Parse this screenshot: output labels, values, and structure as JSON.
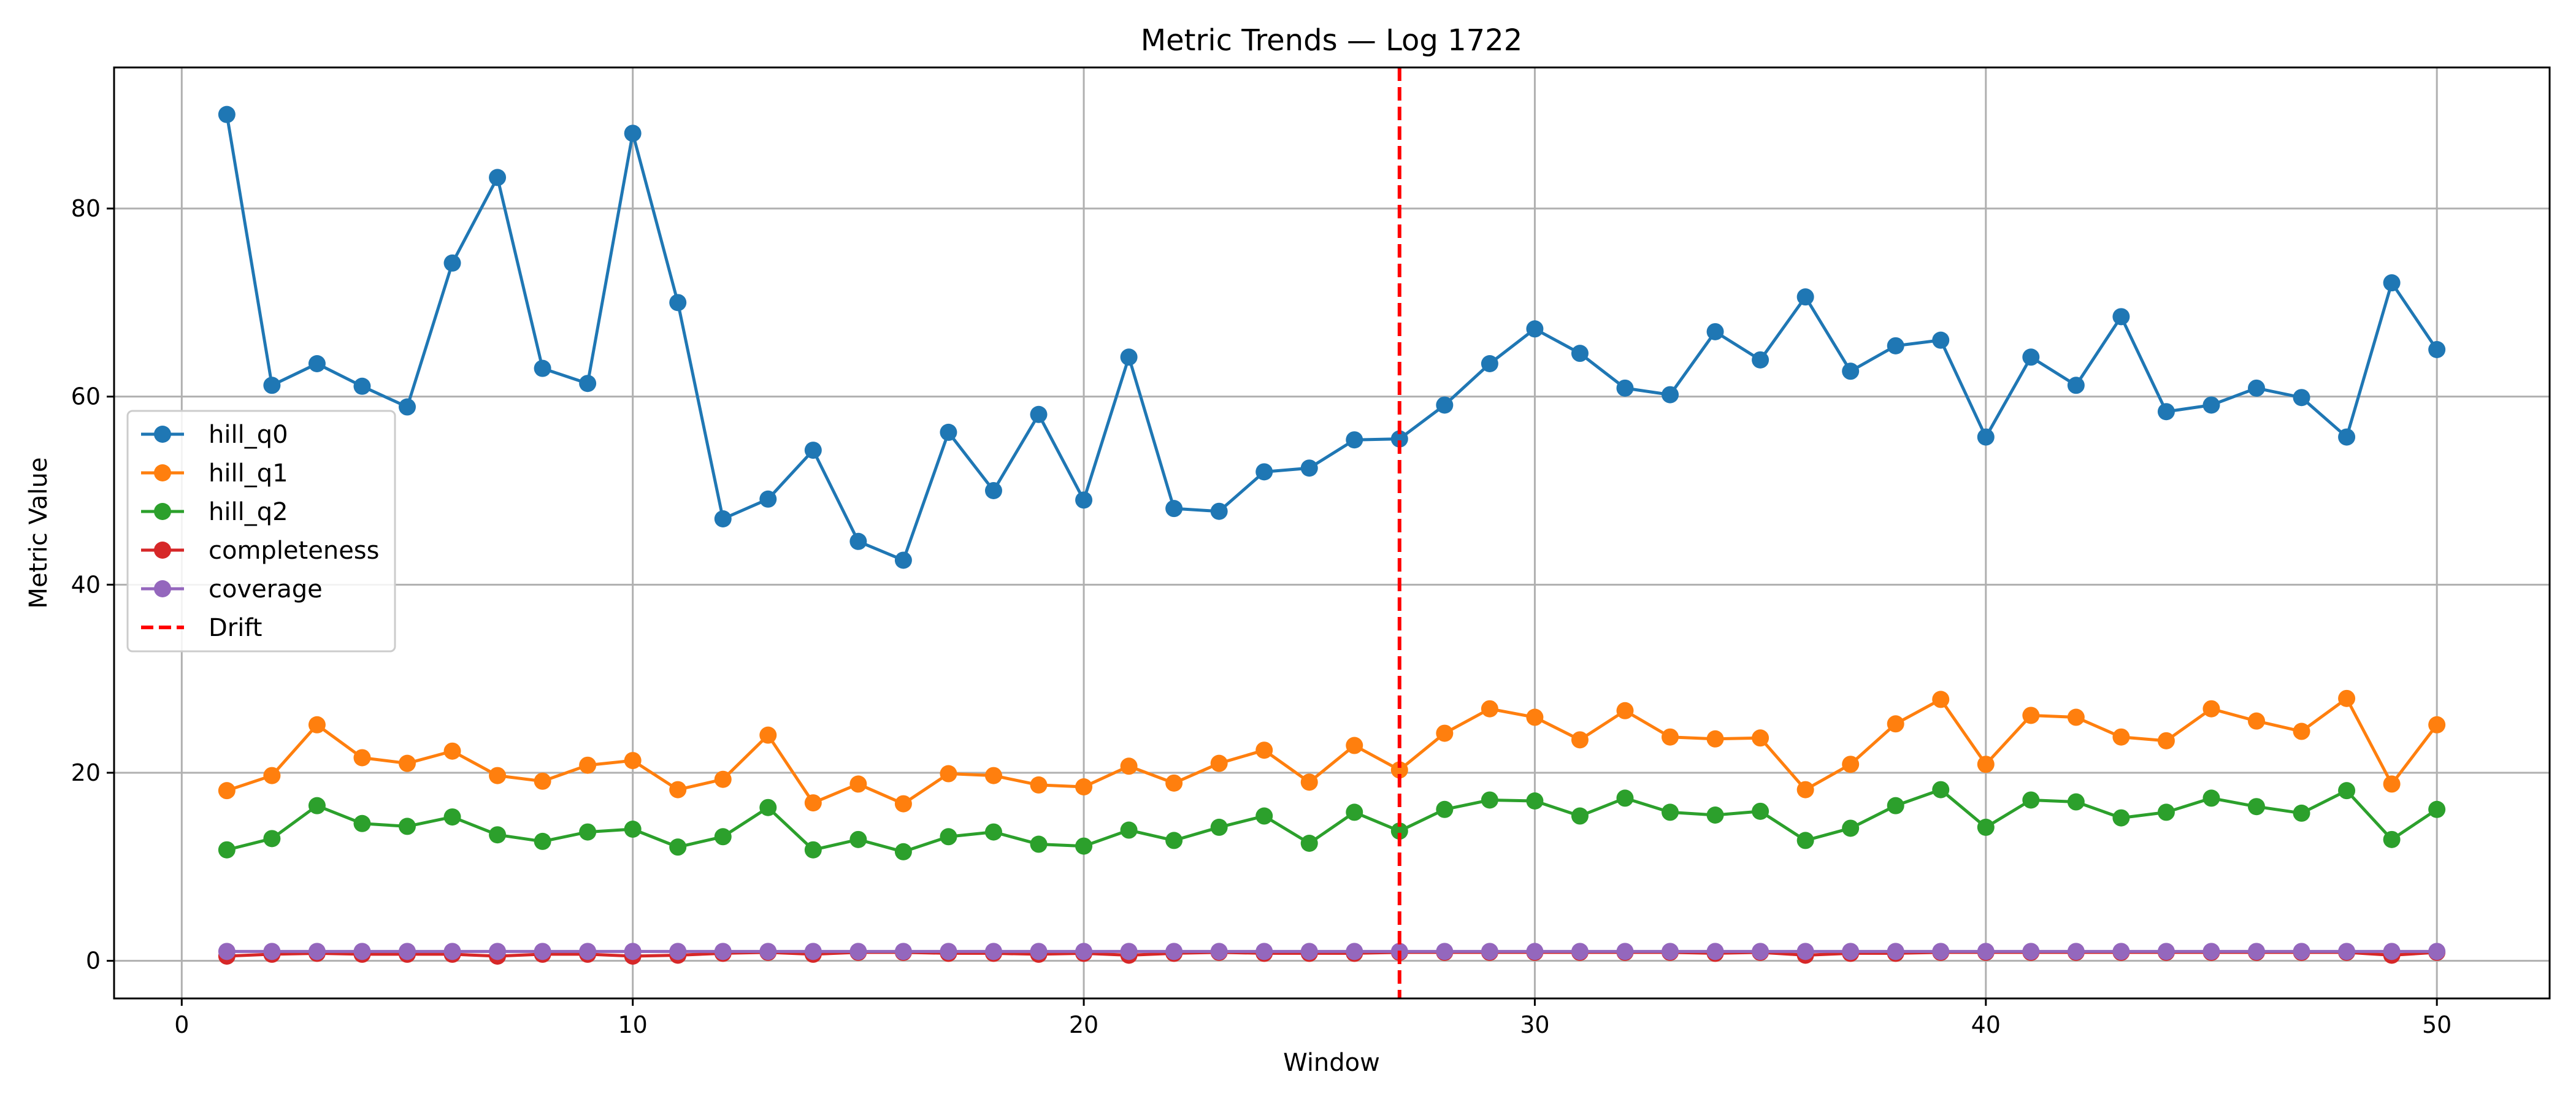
{
  "chart_data": {
    "type": "line",
    "title": "Metric Trends — Log 1722",
    "xlabel": "Window",
    "ylabel": "Metric Value",
    "xlim": [
      -1.5,
      52.5
    ],
    "ylim": [
      -4,
      95
    ],
    "xticks": [
      0,
      10,
      20,
      30,
      40,
      50
    ],
    "yticks": [
      0,
      20,
      40,
      60,
      80
    ],
    "grid": true,
    "legend_position": "center-left",
    "x": [
      1,
      2,
      3,
      4,
      5,
      6,
      7,
      8,
      9,
      10,
      11,
      12,
      13,
      14,
      15,
      16,
      17,
      18,
      19,
      20,
      21,
      22,
      23,
      24,
      25,
      26,
      27,
      28,
      29,
      30,
      31,
      32,
      33,
      34,
      35,
      36,
      37,
      38,
      39,
      40,
      41,
      42,
      43,
      44,
      45,
      46,
      47,
      48,
      49,
      50
    ],
    "series": [
      {
        "name": "hill_q0",
        "color": "#1f77b4",
        "values": [
          90.0,
          61.2,
          63.5,
          61.1,
          58.9,
          74.2,
          83.3,
          63.0,
          61.4,
          88.0,
          70.0,
          47.0,
          49.1,
          54.3,
          44.6,
          42.6,
          56.2,
          50.0,
          58.1,
          49.0,
          64.2,
          48.1,
          47.8,
          52.0,
          52.4,
          55.4,
          55.5,
          59.1,
          63.5,
          67.2,
          64.6,
          60.9,
          60.2,
          66.9,
          63.9,
          70.6,
          62.7,
          65.4,
          66.0,
          55.7,
          64.2,
          61.2,
          68.5,
          58.4,
          59.1,
          60.9,
          59.9,
          55.7,
          72.1,
          65.0
        ]
      },
      {
        "name": "hill_q1",
        "color": "#ff7f0e",
        "values": [
          18.1,
          19.7,
          25.1,
          21.6,
          21.0,
          22.3,
          19.7,
          19.1,
          20.8,
          21.3,
          18.2,
          19.3,
          24.0,
          16.8,
          18.8,
          16.7,
          19.9,
          19.7,
          18.7,
          18.5,
          20.7,
          18.9,
          21.0,
          22.4,
          19.0,
          22.9,
          20.3,
          24.2,
          26.8,
          25.9,
          23.5,
          26.6,
          23.8,
          23.6,
          23.7,
          18.2,
          20.9,
          25.2,
          27.8,
          20.9,
          26.1,
          25.9,
          23.8,
          23.4,
          26.8,
          25.5,
          24.4,
          27.9,
          18.8,
          25.1
        ]
      },
      {
        "name": "hill_q2",
        "color": "#2ca02c",
        "values": [
          11.8,
          13.0,
          16.5,
          14.6,
          14.3,
          15.3,
          13.4,
          12.7,
          13.7,
          14.0,
          12.1,
          13.2,
          16.3,
          11.8,
          12.9,
          11.6,
          13.2,
          13.7,
          12.4,
          12.2,
          13.9,
          12.8,
          14.2,
          15.4,
          12.5,
          15.8,
          13.8,
          16.1,
          17.1,
          17.0,
          15.4,
          17.3,
          15.8,
          15.5,
          15.9,
          12.8,
          14.1,
          16.5,
          18.2,
          14.2,
          17.1,
          16.9,
          15.2,
          15.8,
          17.3,
          16.4,
          15.7,
          18.1,
          12.9,
          16.1
        ]
      },
      {
        "name": "completeness",
        "color": "#d62728",
        "values": [
          0.5,
          0.7,
          0.8,
          0.7,
          0.7,
          0.7,
          0.5,
          0.7,
          0.7,
          0.5,
          0.6,
          0.8,
          0.9,
          0.7,
          0.9,
          0.9,
          0.8,
          0.8,
          0.7,
          0.8,
          0.6,
          0.8,
          0.9,
          0.8,
          0.8,
          0.8,
          0.9,
          0.9,
          0.9,
          0.9,
          0.9,
          0.9,
          0.9,
          0.8,
          0.9,
          0.6,
          0.8,
          0.8,
          0.9,
          0.9,
          0.9,
          0.9,
          0.9,
          0.9,
          0.9,
          0.9,
          0.9,
          0.9,
          0.6,
          0.9
        ]
      },
      {
        "name": "coverage",
        "color": "#9467bd",
        "values": [
          1.0,
          1.0,
          1.0,
          1.0,
          1.0,
          1.0,
          1.0,
          1.0,
          1.0,
          1.0,
          1.0,
          1.0,
          1.0,
          1.0,
          1.0,
          1.0,
          1.0,
          1.0,
          1.0,
          1.0,
          1.0,
          1.0,
          1.0,
          1.0,
          1.0,
          1.0,
          1.0,
          1.0,
          1.0,
          1.0,
          1.0,
          1.0,
          1.0,
          1.0,
          1.0,
          1.0,
          1.0,
          1.0,
          1.0,
          1.0,
          1.0,
          1.0,
          1.0,
          1.0,
          1.0,
          1.0,
          1.0,
          1.0,
          1.0,
          1.0
        ]
      }
    ],
    "drift": {
      "name": "Drift",
      "x": 27,
      "color": "#ff0000",
      "style": "dashed"
    },
    "legend": [
      "hill_q0",
      "hill_q1",
      "hill_q2",
      "completeness",
      "coverage",
      "Drift"
    ]
  }
}
